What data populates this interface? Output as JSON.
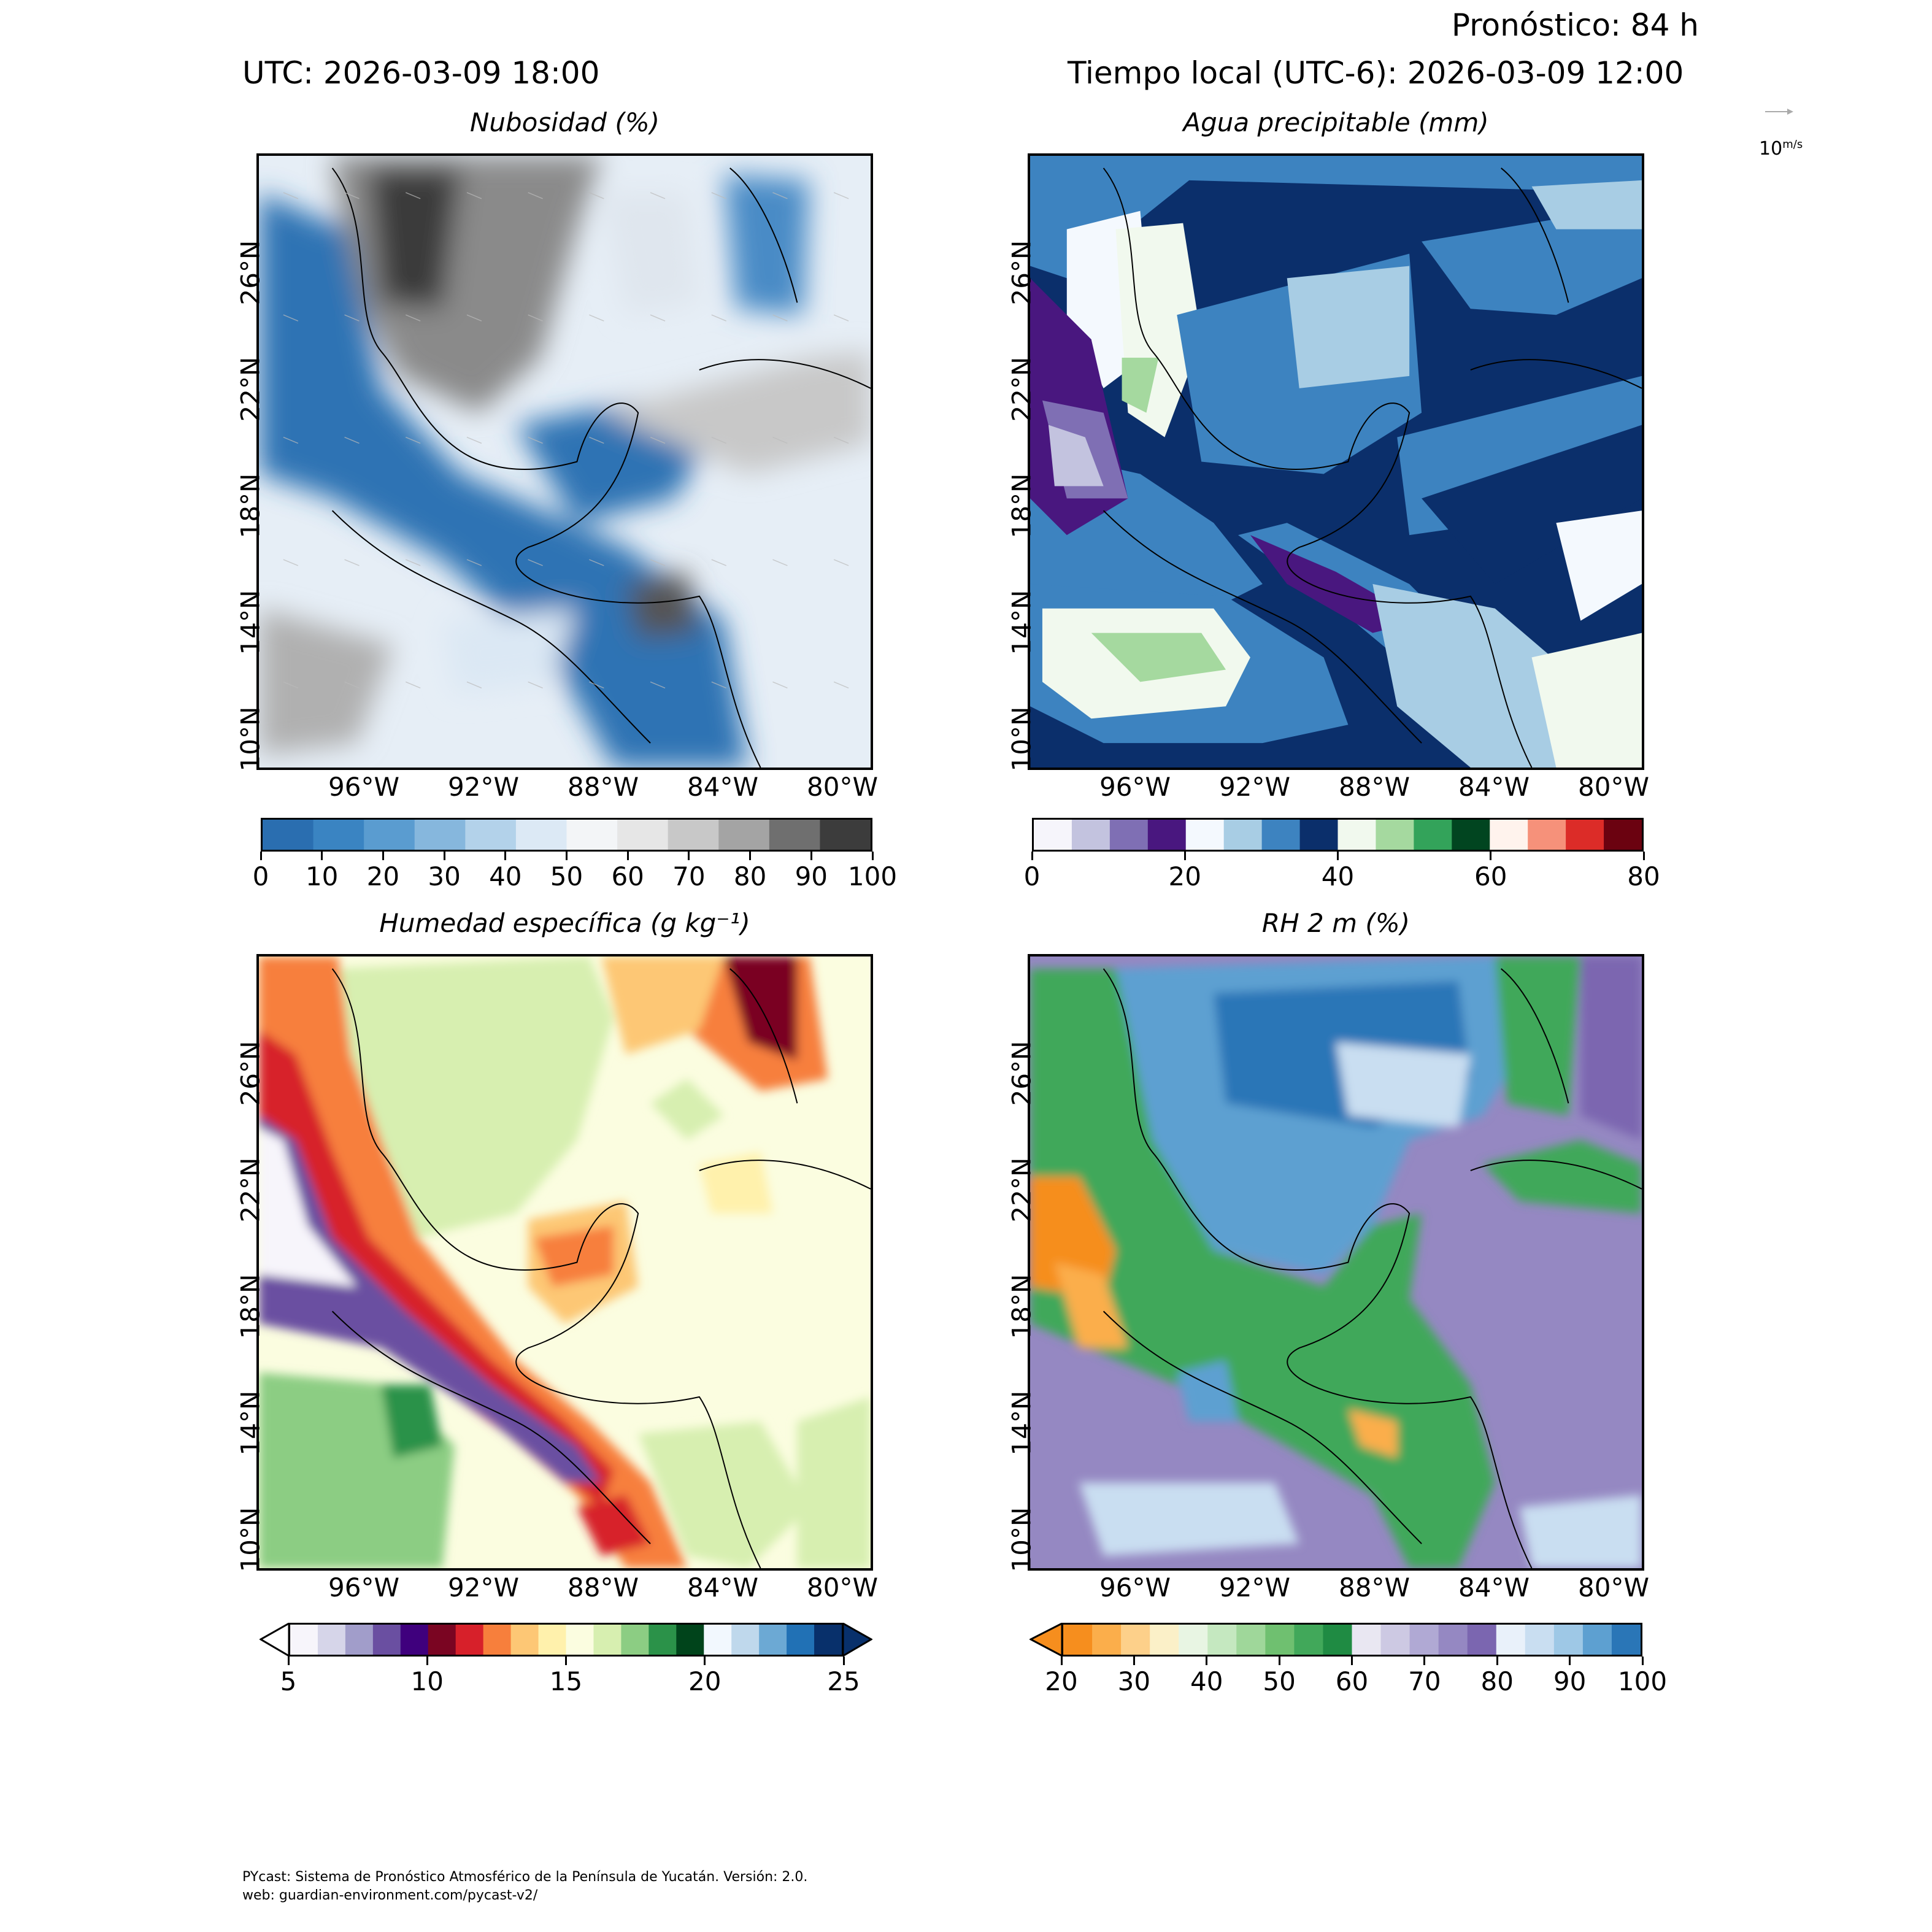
{
  "header": {
    "forecast": "Pronóstico: 84 h",
    "utc": "UTC:  2026-03-09 18:00",
    "local": "Tiempo local (UTC-6): 2026-03-09 12:00"
  },
  "wind_key": {
    "label": "10",
    "unit_num": "m",
    "unit_den": "s"
  },
  "panels": [
    {
      "id": "cloud",
      "title": "Nubosidad (%)",
      "lat_labels": [
        "26°N",
        "22°N",
        "18°N",
        "14°N",
        "10°N"
      ],
      "lon_labels": [
        "96°W",
        "92°W",
        "88°W",
        "84°W",
        "80°W"
      ],
      "colorbar": {
        "ticks": [
          "0",
          "10",
          "20",
          "30",
          "40",
          "50",
          "60",
          "70",
          "80",
          "90",
          "100"
        ],
        "colors": [
          "#2a6eb0",
          "#3a84c2",
          "#5a9cd0",
          "#86b7dd",
          "#b3d2ea",
          "#dce9f5",
          "#f3f5f7",
          "#e6e6e6",
          "#c8c8c8",
          "#a4a4a4",
          "#6f6f6f",
          "#3c3c3c"
        ]
      }
    },
    {
      "id": "pw",
      "title": "Agua precipitable (mm)",
      "lat_labels": [
        "26°N",
        "22°N",
        "18°N",
        "14°N",
        "10°N"
      ],
      "lon_labels": [
        "96°W",
        "92°W",
        "88°W",
        "84°W",
        "80°W"
      ],
      "colorbar": {
        "ticks": [
          "0",
          "20",
          "40",
          "60",
          "80"
        ],
        "colors": [
          "#f6f5fb",
          "#c3c3df",
          "#7f6fb4",
          "#49177f",
          "#f4f9fe",
          "#a8cde4",
          "#3d83c0",
          "#0b2f6b",
          "#f1f9ee",
          "#a5d99f",
          "#33a35a",
          "#014520",
          "#fff3ed",
          "#f6917a",
          "#dc2c28",
          "#6b0210"
        ]
      }
    },
    {
      "id": "q",
      "title": "Humedad específica (g kg⁻¹)",
      "lat_labels": [
        "26°N",
        "22°N",
        "18°N",
        "14°N",
        "10°N"
      ],
      "lon_labels": [
        "96°W",
        "92°W",
        "88°W",
        "84°W",
        "80°W"
      ],
      "colorbar": {
        "ticks": [
          "5",
          "10",
          "15",
          "20",
          "25"
        ],
        "colors": [
          "#f7f5fb",
          "#d6d5e9",
          "#a19dca",
          "#6a4fa1",
          "#3f007d",
          "#7a0522",
          "#d7202a",
          "#f77f3c",
          "#fdc775",
          "#fff1ac",
          "#fbfde0",
          "#d7efb0",
          "#8ccd83",
          "#2b9249",
          "#00441b",
          "#f2f8fe",
          "#bfd8ec",
          "#6ca9d4",
          "#2171b5",
          "#08306b"
        ]
      }
    },
    {
      "id": "rh",
      "title": "RH 2 m (%)",
      "lat_labels": [
        "26°N",
        "22°N",
        "18°N",
        "14°N",
        "10°N"
      ],
      "lon_labels": [
        "96°W",
        "92°W",
        "88°W",
        "84°W",
        "80°W"
      ],
      "colorbar": {
        "ticks": [
          "20",
          "30",
          "40",
          "50",
          "60",
          "70",
          "80",
          "90",
          "100"
        ],
        "colors": [
          "#f68e1e",
          "#fbae4b",
          "#fdd08a",
          "#fbf0c8",
          "#e8f5e3",
          "#c5e8c0",
          "#9fd79a",
          "#6fc070",
          "#41a85a",
          "#1f8b43",
          "#e9e7f2",
          "#cdc9e3",
          "#b0a9d4",
          "#9588c2",
          "#7b66b0",
          "#e9f1fa",
          "#c9def1",
          "#9ec8e6",
          "#5da0d1",
          "#2a76b7"
        ]
      }
    }
  ],
  "footer": {
    "line1": "PYcast: Sistema de Pronóstico Atmosférico de la Península de Yucatán. Versión: 2.0.",
    "line2": "web: guardian-environment.com/pycast-v2/"
  }
}
